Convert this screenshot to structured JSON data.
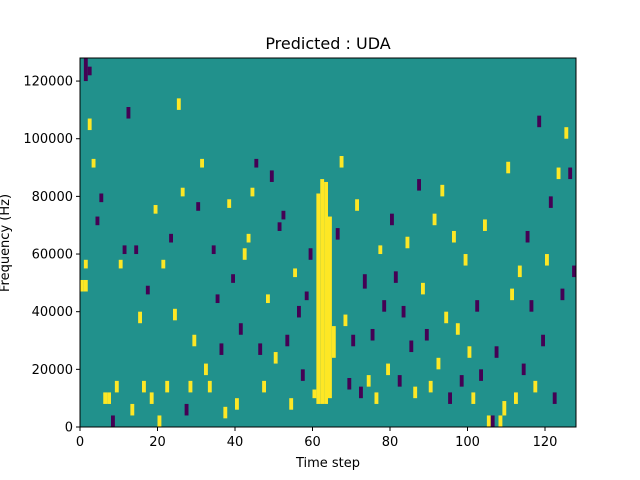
{
  "chart_data": {
    "type": "heatmap",
    "title": "Predicted : UDA",
    "xlabel": "Time step",
    "ylabel": "Frequency (Hz)",
    "xlim": [
      0,
      128
    ],
    "ylim": [
      0,
      128000
    ],
    "x_ticks": [
      0,
      20,
      40,
      60,
      80,
      100,
      120
    ],
    "y_ticks": [
      0,
      20000,
      40000,
      60000,
      80000,
      100000,
      120000
    ],
    "grid": false,
    "legend": "none",
    "n_time_steps": 128,
    "n_freq_bins": 128,
    "bin_height_hz": 1000,
    "values_legend": {
      "background": 0,
      "dark": -1,
      "bright": 1
    },
    "colors": {
      "background": "#21918c",
      "dark": "#440154",
      "bright": "#fde725"
    },
    "cells": [
      {
        "t": 1,
        "f": [
          120,
          127
        ],
        "v": -1
      },
      {
        "t": 2,
        "f": [
          122,
          124
        ],
        "v": -1
      },
      {
        "t": 0,
        "f": [
          47,
          50
        ],
        "v": 1
      },
      {
        "t": 1,
        "f": [
          47,
          50
        ],
        "v": 1
      },
      {
        "t": 1,
        "f": [
          55,
          57
        ],
        "v": 1
      },
      {
        "t": 2,
        "f": [
          103,
          106
        ],
        "v": 1
      },
      {
        "t": 3,
        "f": [
          90,
          92
        ],
        "v": 1
      },
      {
        "t": 4,
        "f": [
          70,
          72
        ],
        "v": -1
      },
      {
        "t": 5,
        "f": [
          78,
          80
        ],
        "v": -1
      },
      {
        "t": 6,
        "f": [
          8,
          11
        ],
        "v": 1
      },
      {
        "t": 7,
        "f": [
          8,
          11
        ],
        "v": 1
      },
      {
        "t": 8,
        "f": [
          0,
          3
        ],
        "v": -1
      },
      {
        "t": 9,
        "f": [
          12,
          15
        ],
        "v": 1
      },
      {
        "t": 10,
        "f": [
          55,
          57
        ],
        "v": 1
      },
      {
        "t": 11,
        "f": [
          60,
          62
        ],
        "v": -1
      },
      {
        "t": 12,
        "f": [
          107,
          110
        ],
        "v": -1
      },
      {
        "t": 13,
        "f": [
          4,
          7
        ],
        "v": 1
      },
      {
        "t": 14,
        "f": [
          60,
          62
        ],
        "v": -1
      },
      {
        "t": 15,
        "f": [
          36,
          39
        ],
        "v": 1
      },
      {
        "t": 16,
        "f": [
          12,
          15
        ],
        "v": 1
      },
      {
        "t": 17,
        "f": [
          46,
          48
        ],
        "v": -1
      },
      {
        "t": 18,
        "f": [
          8,
          11
        ],
        "v": 1
      },
      {
        "t": 19,
        "f": [
          74,
          76
        ],
        "v": 1
      },
      {
        "t": 20,
        "f": [
          0,
          3
        ],
        "v": 1
      },
      {
        "t": 21,
        "f": [
          55,
          57
        ],
        "v": 1
      },
      {
        "t": 22,
        "f": [
          12,
          15
        ],
        "v": 1
      },
      {
        "t": 23,
        "f": [
          64,
          66
        ],
        "v": -1
      },
      {
        "t": 24,
        "f": [
          37,
          40
        ],
        "v": 1
      },
      {
        "t": 25,
        "f": [
          110,
          113
        ],
        "v": 1
      },
      {
        "t": 26,
        "f": [
          80,
          82
        ],
        "v": 1
      },
      {
        "t": 27,
        "f": [
          4,
          7
        ],
        "v": -1
      },
      {
        "t": 28,
        "f": [
          12,
          15
        ],
        "v": 1
      },
      {
        "t": 29,
        "f": [
          28,
          31
        ],
        "v": 1
      },
      {
        "t": 30,
        "f": [
          75,
          77
        ],
        "v": -1
      },
      {
        "t": 31,
        "f": [
          90,
          92
        ],
        "v": 1
      },
      {
        "t": 32,
        "f": [
          18,
          21
        ],
        "v": 1
      },
      {
        "t": 33,
        "f": [
          12,
          15
        ],
        "v": 1
      },
      {
        "t": 34,
        "f": [
          60,
          62
        ],
        "v": -1
      },
      {
        "t": 35,
        "f": [
          43,
          45
        ],
        "v": -1
      },
      {
        "t": 36,
        "f": [
          25,
          28
        ],
        "v": -1
      },
      {
        "t": 37,
        "f": [
          3,
          6
        ],
        "v": 1
      },
      {
        "t": 38,
        "f": [
          76,
          78
        ],
        "v": 1
      },
      {
        "t": 39,
        "f": [
          50,
          52
        ],
        "v": -1
      },
      {
        "t": 40,
        "f": [
          6,
          9
        ],
        "v": 1
      },
      {
        "t": 41,
        "f": [
          32,
          35
        ],
        "v": -1
      },
      {
        "t": 42,
        "f": [
          58,
          61
        ],
        "v": 1
      },
      {
        "t": 43,
        "f": [
          64,
          66
        ],
        "v": 1
      },
      {
        "t": 44,
        "f": [
          80,
          82
        ],
        "v": 1
      },
      {
        "t": 45,
        "f": [
          90,
          92
        ],
        "v": -1
      },
      {
        "t": 46,
        "f": [
          25,
          28
        ],
        "v": -1
      },
      {
        "t": 47,
        "f": [
          12,
          15
        ],
        "v": 1
      },
      {
        "t": 48,
        "f": [
          43,
          45
        ],
        "v": 1
      },
      {
        "t": 49,
        "f": [
          85,
          88
        ],
        "v": -1
      },
      {
        "t": 50,
        "f": [
          22,
          25
        ],
        "v": 1
      },
      {
        "t": 51,
        "f": [
          68,
          70
        ],
        "v": -1
      },
      {
        "t": 52,
        "f": [
          72,
          74
        ],
        "v": -1
      },
      {
        "t": 53,
        "f": [
          28,
          31
        ],
        "v": -1
      },
      {
        "t": 54,
        "f": [
          6,
          9
        ],
        "v": 1
      },
      {
        "t": 55,
        "f": [
          52,
          54
        ],
        "v": 1
      },
      {
        "t": 56,
        "f": [
          38,
          41
        ],
        "v": -1
      },
      {
        "t": 57,
        "f": [
          16,
          19
        ],
        "v": -1
      },
      {
        "t": 58,
        "f": [
          44,
          46
        ],
        "v": -1
      },
      {
        "t": 59,
        "f": [
          58,
          61
        ],
        "v": -1
      },
      {
        "t": 60,
        "f": [
          10,
          12
        ],
        "v": 1
      },
      {
        "t": 61,
        "f": [
          8,
          80
        ],
        "v": 1
      },
      {
        "t": 62,
        "f": [
          8,
          85
        ],
        "v": 1
      },
      {
        "t": 63,
        "f": [
          8,
          84
        ],
        "v": 1
      },
      {
        "t": 64,
        "f": [
          10,
          72
        ],
        "v": 1
      },
      {
        "t": 65,
        "f": [
          24,
          34
        ],
        "v": 1
      },
      {
        "t": 66,
        "f": [
          65,
          68
        ],
        "v": -1
      },
      {
        "t": 67,
        "f": [
          90,
          93
        ],
        "v": 1
      },
      {
        "t": 68,
        "f": [
          35,
          38
        ],
        "v": 1
      },
      {
        "t": 69,
        "f": [
          13,
          16
        ],
        "v": -1
      },
      {
        "t": 70,
        "f": [
          28,
          31
        ],
        "v": -1
      },
      {
        "t": 71,
        "f": [
          75,
          78
        ],
        "v": 1
      },
      {
        "t": 72,
        "f": [
          10,
          13
        ],
        "v": -1
      },
      {
        "t": 73,
        "f": [
          48,
          52
        ],
        "v": -1
      },
      {
        "t": 74,
        "f": [
          14,
          17
        ],
        "v": 1
      },
      {
        "t": 75,
        "f": [
          30,
          33
        ],
        "v": -1
      },
      {
        "t": 76,
        "f": [
          8,
          11
        ],
        "v": 1
      },
      {
        "t": 77,
        "f": [
          60,
          62
        ],
        "v": 1
      },
      {
        "t": 78,
        "f": [
          40,
          43
        ],
        "v": -1
      },
      {
        "t": 79,
        "f": [
          18,
          21
        ],
        "v": 1
      },
      {
        "t": 80,
        "f": [
          70,
          73
        ],
        "v": -1
      },
      {
        "t": 81,
        "f": [
          50,
          53
        ],
        "v": -1
      },
      {
        "t": 82,
        "f": [
          14,
          17
        ],
        "v": -1
      },
      {
        "t": 83,
        "f": [
          38,
          41
        ],
        "v": -1
      },
      {
        "t": 84,
        "f": [
          62,
          65
        ],
        "v": 1
      },
      {
        "t": 85,
        "f": [
          26,
          29
        ],
        "v": -1
      },
      {
        "t": 86,
        "f": [
          10,
          13
        ],
        "v": 1
      },
      {
        "t": 87,
        "f": [
          82,
          85
        ],
        "v": -1
      },
      {
        "t": 88,
        "f": [
          46,
          49
        ],
        "v": 1
      },
      {
        "t": 89,
        "f": [
          30,
          33
        ],
        "v": -1
      },
      {
        "t": 90,
        "f": [
          12,
          15
        ],
        "v": 1
      },
      {
        "t": 91,
        "f": [
          70,
          73
        ],
        "v": 1
      },
      {
        "t": 92,
        "f": [
          20,
          23
        ],
        "v": 1
      },
      {
        "t": 93,
        "f": [
          80,
          83
        ],
        "v": 1
      },
      {
        "t": 94,
        "f": [
          36,
          39
        ],
        "v": 1
      },
      {
        "t": 95,
        "f": [
          8,
          11
        ],
        "v": -1
      },
      {
        "t": 96,
        "f": [
          64,
          67
        ],
        "v": 1
      },
      {
        "t": 97,
        "f": [
          32,
          35
        ],
        "v": 1
      },
      {
        "t": 98,
        "f": [
          14,
          17
        ],
        "v": -1
      },
      {
        "t": 99,
        "f": [
          56,
          59
        ],
        "v": 1
      },
      {
        "t": 100,
        "f": [
          24,
          27
        ],
        "v": 1
      },
      {
        "t": 101,
        "f": [
          8,
          11
        ],
        "v": 1
      },
      {
        "t": 102,
        "f": [
          40,
          43
        ],
        "v": -1
      },
      {
        "t": 103,
        "f": [
          16,
          19
        ],
        "v": -1
      },
      {
        "t": 104,
        "f": [
          68,
          71
        ],
        "v": 1
      },
      {
        "t": 105,
        "f": [
          0,
          3
        ],
        "v": 1
      },
      {
        "t": 106,
        "f": [
          0,
          3
        ],
        "v": -1
      },
      {
        "t": 107,
        "f": [
          24,
          27
        ],
        "v": -1
      },
      {
        "t": 108,
        "f": [
          0,
          3
        ],
        "v": 1
      },
      {
        "t": 109,
        "f": [
          4,
          8
        ],
        "v": 1
      },
      {
        "t": 110,
        "f": [
          88,
          91
        ],
        "v": 1
      },
      {
        "t": 111,
        "f": [
          44,
          47
        ],
        "v": 1
      },
      {
        "t": 112,
        "f": [
          8,
          11
        ],
        "v": 1
      },
      {
        "t": 113,
        "f": [
          52,
          55
        ],
        "v": 1
      },
      {
        "t": 114,
        "f": [
          18,
          21
        ],
        "v": -1
      },
      {
        "t": 115,
        "f": [
          64,
          67
        ],
        "v": -1
      },
      {
        "t": 116,
        "f": [
          40,
          43
        ],
        "v": -1
      },
      {
        "t": 117,
        "f": [
          12,
          15
        ],
        "v": 1
      },
      {
        "t": 118,
        "f": [
          104,
          107
        ],
        "v": -1
      },
      {
        "t": 119,
        "f": [
          28,
          31
        ],
        "v": -1
      },
      {
        "t": 120,
        "f": [
          56,
          59
        ],
        "v": 1
      },
      {
        "t": 121,
        "f": [
          76,
          79
        ],
        "v": -1
      },
      {
        "t": 122,
        "f": [
          8,
          11
        ],
        "v": -1
      },
      {
        "t": 123,
        "f": [
          86,
          89
        ],
        "v": 1
      },
      {
        "t": 124,
        "f": [
          44,
          47
        ],
        "v": -1
      },
      {
        "t": 125,
        "f": [
          100,
          103
        ],
        "v": 1
      },
      {
        "t": 126,
        "f": [
          86,
          89
        ],
        "v": -1
      },
      {
        "t": 127,
        "f": [
          52,
          55
        ],
        "v": -1
      }
    ]
  }
}
